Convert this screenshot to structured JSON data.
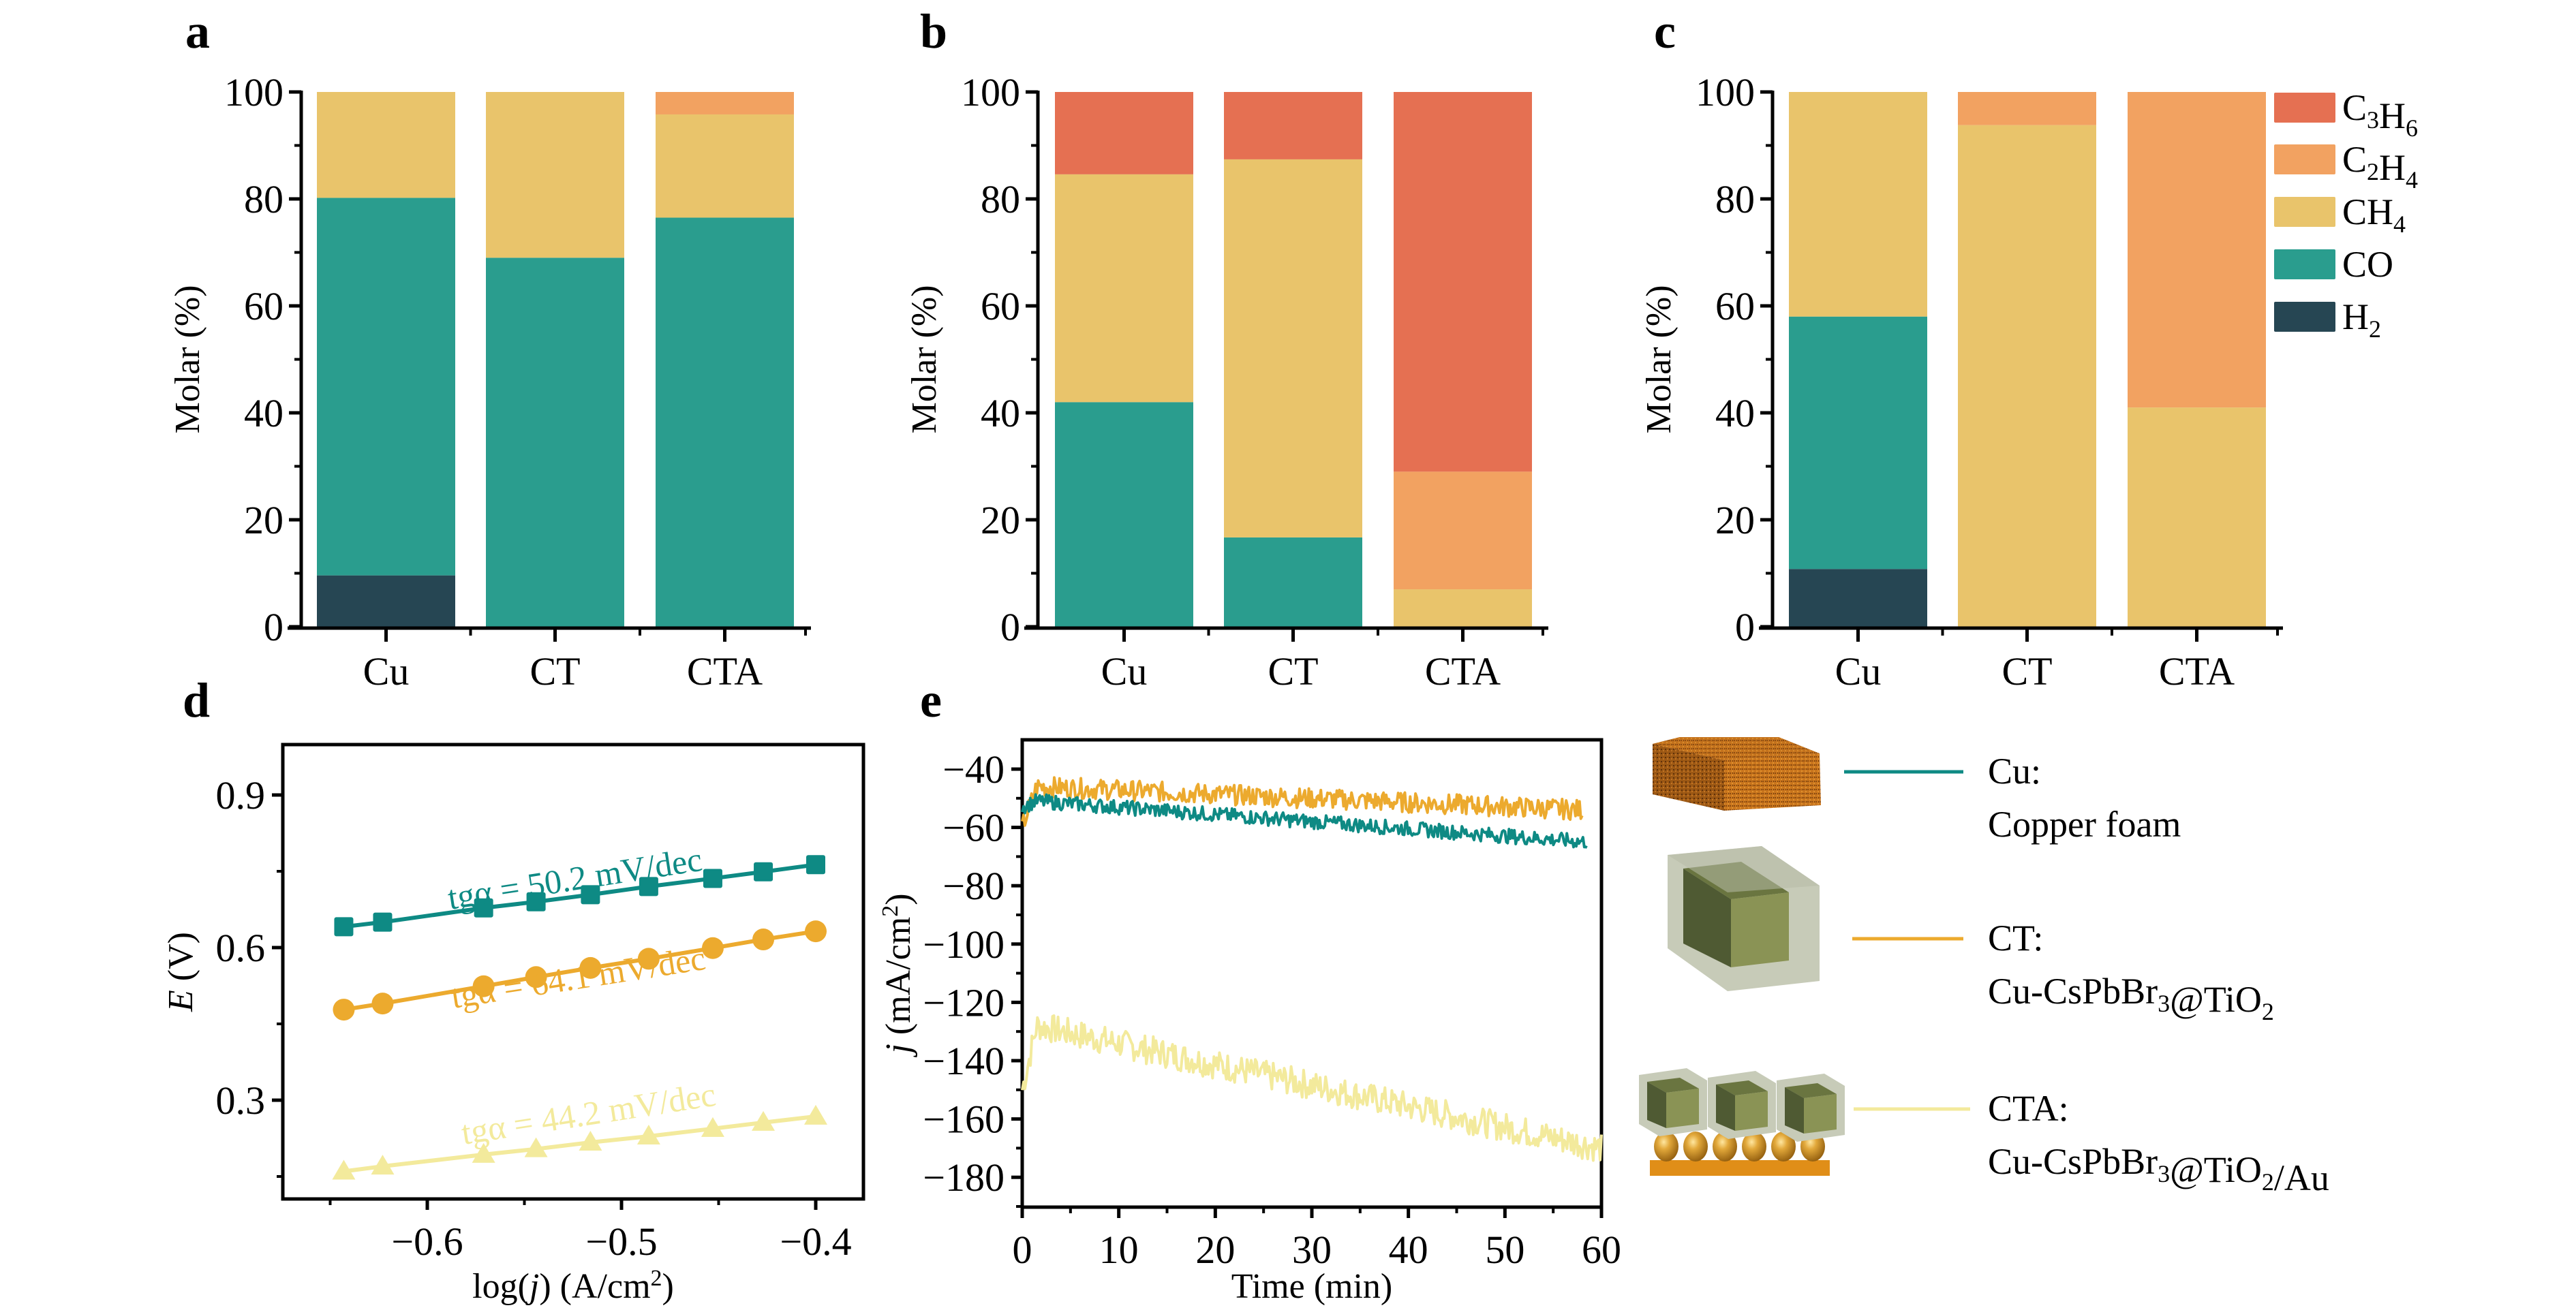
{
  "colors": {
    "C3H6": "#e57052",
    "C2H4": "#f2a261",
    "CH4": "#e9c46b",
    "CO": "#2a9d8e",
    "H2": "#264653",
    "Cu_line": "#0e8a84",
    "CT_line": "#ecaa2e",
    "CTA_line": "#f3ea9c"
  },
  "panel_labels": [
    "a",
    "b",
    "c",
    "d",
    "e"
  ],
  "chart_data": [
    {
      "panel": "a",
      "type": "bar",
      "stacked": true,
      "categories": [
        "Cu",
        "CT",
        "CTA"
      ],
      "ylabel": "Molar (%)",
      "ylim": [
        0,
        100
      ],
      "yticks": [
        "0",
        "20",
        "40",
        "60",
        "80",
        "100"
      ],
      "series": [
        {
          "name": "H2",
          "values": [
            9.6,
            0,
            0
          ]
        },
        {
          "name": "CO",
          "values": [
            70.6,
            69.0,
            76.5
          ]
        },
        {
          "name": "CH4",
          "values": [
            19.8,
            31.0,
            19.3
          ]
        },
        {
          "name": "C2H4",
          "values": [
            0,
            0,
            4.2
          ]
        },
        {
          "name": "C3H6",
          "values": [
            0,
            0,
            0
          ]
        }
      ]
    },
    {
      "panel": "b",
      "type": "bar",
      "stacked": true,
      "categories": [
        "Cu",
        "CT",
        "CTA"
      ],
      "ylabel": "Molar (%)",
      "ylim": [
        0,
        100
      ],
      "yticks": [
        "0",
        "20",
        "40",
        "60",
        "80",
        "100"
      ],
      "series": [
        {
          "name": "H2",
          "values": [
            0,
            0,
            0
          ]
        },
        {
          "name": "CO",
          "values": [
            42.0,
            16.7,
            0
          ]
        },
        {
          "name": "CH4",
          "values": [
            42.6,
            70.7,
            7.0
          ]
        },
        {
          "name": "C2H4",
          "values": [
            0,
            0,
            22.0
          ]
        },
        {
          "name": "C3H6",
          "values": [
            15.4,
            12.6,
            71.0
          ]
        }
      ]
    },
    {
      "panel": "c",
      "type": "bar",
      "stacked": true,
      "categories": [
        "Cu",
        "CT",
        "CTA"
      ],
      "ylabel": "Molar (%)",
      "ylim": [
        0,
        100
      ],
      "yticks": [
        "0",
        "20",
        "40",
        "60",
        "80",
        "100"
      ],
      "legend": {
        "placement": "right",
        "entries": [
          {
            "key": "C3H6",
            "main": [
              "C",
              "H"
            ],
            "subs": [
              "3",
              "6"
            ]
          },
          {
            "key": "C2H4",
            "main": [
              "C",
              "H"
            ],
            "subs": [
              "2",
              "4"
            ]
          },
          {
            "key": "CH4",
            "main": [
              "CH"
            ],
            "subs": [
              "4"
            ]
          },
          {
            "key": "CO",
            "main": [
              "CO"
            ],
            "subs": [
              ""
            ]
          },
          {
            "key": "H2",
            "main": [
              "H"
            ],
            "subs": [
              "2"
            ]
          }
        ]
      },
      "series": [
        {
          "name": "H2",
          "values": [
            10.8,
            0,
            0
          ]
        },
        {
          "name": "CO",
          "values": [
            47.2,
            0,
            0
          ]
        },
        {
          "name": "CH4",
          "values": [
            42.0,
            93.8,
            41.0
          ]
        },
        {
          "name": "C2H4",
          "values": [
            0,
            6.2,
            59.0
          ]
        },
        {
          "name": "C3H6",
          "values": [
            0,
            0,
            0
          ]
        }
      ]
    },
    {
      "panel": "d",
      "type": "line",
      "xlabel_parts": [
        "log(",
        "j",
        ") (A/cm",
        "2",
        ")"
      ],
      "ylabel_parts": [
        "E",
        " (V)"
      ],
      "xlim": [
        -0.674,
        -0.37
      ],
      "ylim": [
        0.1,
        1.0
      ],
      "xticks": [
        -0.6,
        -0.5,
        -0.4
      ],
      "xtick_labels": [
        "−0.6",
        "−0.5",
        "−0.4"
      ],
      "yticks": [
        0.3,
        0.6,
        0.9
      ],
      "ytick_labels": [
        "0.3",
        "0.6",
        "0.9"
      ],
      "x": [
        -0.643,
        -0.623,
        -0.571,
        -0.544,
        -0.516,
        -0.486,
        -0.453,
        -0.427,
        -0.4
      ],
      "series": [
        {
          "name": "Cu",
          "marker": "square",
          "color_key": "Cu_line",
          "annotation": "tgα = 50.2 mV/dec",
          "values": [
            0.641,
            0.65,
            0.678,
            0.69,
            0.704,
            0.72,
            0.736,
            0.749,
            0.763
          ]
        },
        {
          "name": "CT",
          "marker": "circle",
          "color_key": "CT_line",
          "annotation": "tgα = 64.1 mV/dec",
          "values": [
            0.478,
            0.49,
            0.524,
            0.542,
            0.56,
            0.578,
            0.599,
            0.616,
            0.632
          ]
        },
        {
          "name": "CTA",
          "marker": "triangle",
          "color_key": "CTA_line",
          "annotation": "tgα = 44.2 mV/dec",
          "values": [
            0.16,
            0.17,
            0.193,
            0.204,
            0.217,
            0.229,
            0.244,
            0.256,
            0.268
          ]
        }
      ]
    },
    {
      "panel": "e",
      "type": "line",
      "xlabel": "Time (min)",
      "ylabel_parts": [
        "j",
        " (mA/cm",
        "2",
        ")"
      ],
      "xlim": [
        0,
        60
      ],
      "ylim": [
        -190,
        -30
      ],
      "xticks": [
        0,
        10,
        20,
        30,
        40,
        50,
        60
      ],
      "xtick_labels": [
        "0",
        "10",
        "20",
        "30",
        "40",
        "50",
        "60"
      ],
      "yticks": [
        -40,
        -60,
        -80,
        -100,
        -120,
        -140,
        -160,
        -180
      ],
      "ytick_labels": [
        "−40",
        "−60",
        "−80",
        "−100",
        "−120",
        "−140",
        "−160",
        "−180"
      ],
      "series": [
        {
          "name": "Cu",
          "color_key": "Cu_line",
          "t_end": 58.5,
          "start": -53,
          "plateau": -51,
          "end": -65,
          "noise": 2.5
        },
        {
          "name": "CT",
          "color_key": "CT_line",
          "t_end": 58.0,
          "start": -60,
          "plateau": -46,
          "end": -54,
          "noise": 3.5
        },
        {
          "name": "CTA",
          "color_key": "CTA_line",
          "t_end": 60.0,
          "start": -150,
          "plateau": -128,
          "end": -170,
          "noise": 5
        }
      ]
    }
  ],
  "legend_descriptions": [
    {
      "name": "Cu",
      "color_key": "Cu_line",
      "title": "Cu:",
      "parts": [
        [
          "Copper foam",
          ""
        ]
      ],
      "icon": "copper-foam-icon"
    },
    {
      "name": "CT",
      "color_key": "CT_line",
      "title": "CT:",
      "parts": [
        [
          "Cu-CsPbBr",
          "3"
        ],
        [
          "@TiO",
          "2"
        ]
      ],
      "icon": "coated-cube-icon"
    },
    {
      "name": "CTA",
      "color_key": "CTA_line",
      "title": "CTA:",
      "parts": [
        [
          "Cu-CsPbBr",
          "3"
        ],
        [
          "@TiO",
          "2"
        ],
        [
          "/Au",
          ""
        ]
      ],
      "icon": "cube-array-au-icon"
    }
  ]
}
